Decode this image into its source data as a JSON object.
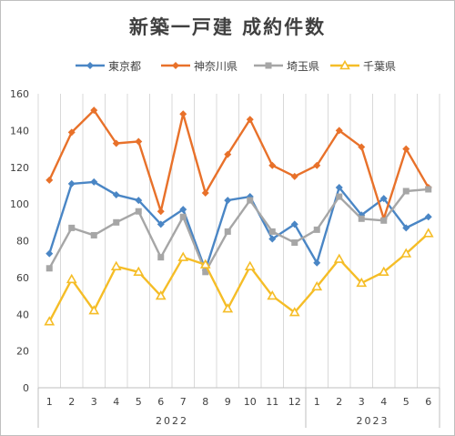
{
  "chart_data": {
    "type": "line",
    "title": "新築一戸建 成約件数",
    "xlabel": "",
    "ylabel": "",
    "ylim": [
      0,
      160
    ],
    "y_ticks": [
      0,
      20,
      40,
      60,
      80,
      100,
      120,
      140,
      160
    ],
    "categories": [
      "1",
      "2",
      "3",
      "4",
      "5",
      "6",
      "7",
      "8",
      "9",
      "10",
      "11",
      "12",
      "1",
      "2",
      "3",
      "4",
      "5",
      "6"
    ],
    "year_groups": [
      {
        "label": "2022",
        "span": 12
      },
      {
        "label": "2023",
        "span": 6
      }
    ],
    "grid": "vertical",
    "legend_position": "top",
    "series": [
      {
        "name": "東京都",
        "color": "#4a86c5",
        "marker": "diamond",
        "values": [
          73,
          111,
          112,
          105,
          102,
          89,
          97,
          64,
          102,
          104,
          81,
          89,
          68,
          109,
          94,
          103,
          87,
          93
        ]
      },
      {
        "name": "神奈川県",
        "color": "#e8712a",
        "marker": "diamond",
        "values": [
          113,
          139,
          151,
          133,
          134,
          96,
          149,
          106,
          127,
          146,
          121,
          115,
          121,
          140,
          131,
          92,
          130,
          109
        ]
      },
      {
        "name": "埼玉県",
        "color": "#a6a6a6",
        "marker": "square",
        "values": [
          65,
          87,
          83,
          90,
          96,
          71,
          93,
          63,
          85,
          102,
          85,
          79,
          86,
          104,
          92,
          91,
          107,
          108
        ]
      },
      {
        "name": "千葉県",
        "color": "#f5bd27",
        "marker": "triangle",
        "values": [
          36,
          59,
          42,
          66,
          63,
          50,
          71,
          67,
          43,
          66,
          50,
          41,
          55,
          70,
          57,
          63,
          73,
          84
        ]
      }
    ]
  }
}
